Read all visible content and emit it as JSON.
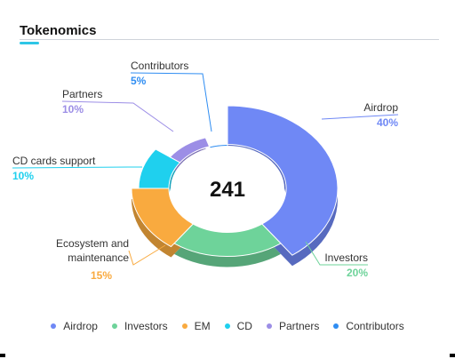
{
  "widget": {
    "title": "Tokenomics",
    "center_value": "241"
  },
  "chart_data": {
    "type": "pie",
    "title": "Tokenomics",
    "categories": [
      "Airdrop",
      "Investors",
      "Ecosystem and maintenance",
      "CD cards support",
      "Partners",
      "Contributors"
    ],
    "values": [
      40,
      20,
      15,
      10,
      10,
      5
    ],
    "value_labels": [
      "40%",
      "20%",
      "15%",
      "10%",
      "10%",
      "5%"
    ],
    "colors": [
      "#6f88f5",
      "#6ed39a",
      "#f9aa3f",
      "#1fd0ee",
      "#9c8ee6",
      "#2f8df2"
    ],
    "legend_placement": "bottom"
  },
  "legend": [
    {
      "label": "Airdrop",
      "color": "#6f88f5"
    },
    {
      "label": "Investors",
      "color": "#6ed39a"
    },
    {
      "label": "EM",
      "color": "#f9aa3f"
    },
    {
      "label": "CD",
      "color": "#1fd0ee"
    },
    {
      "label": "Partners",
      "color": "#9c8ee6"
    },
    {
      "label": "Contributors",
      "color": "#2f8df2"
    }
  ]
}
